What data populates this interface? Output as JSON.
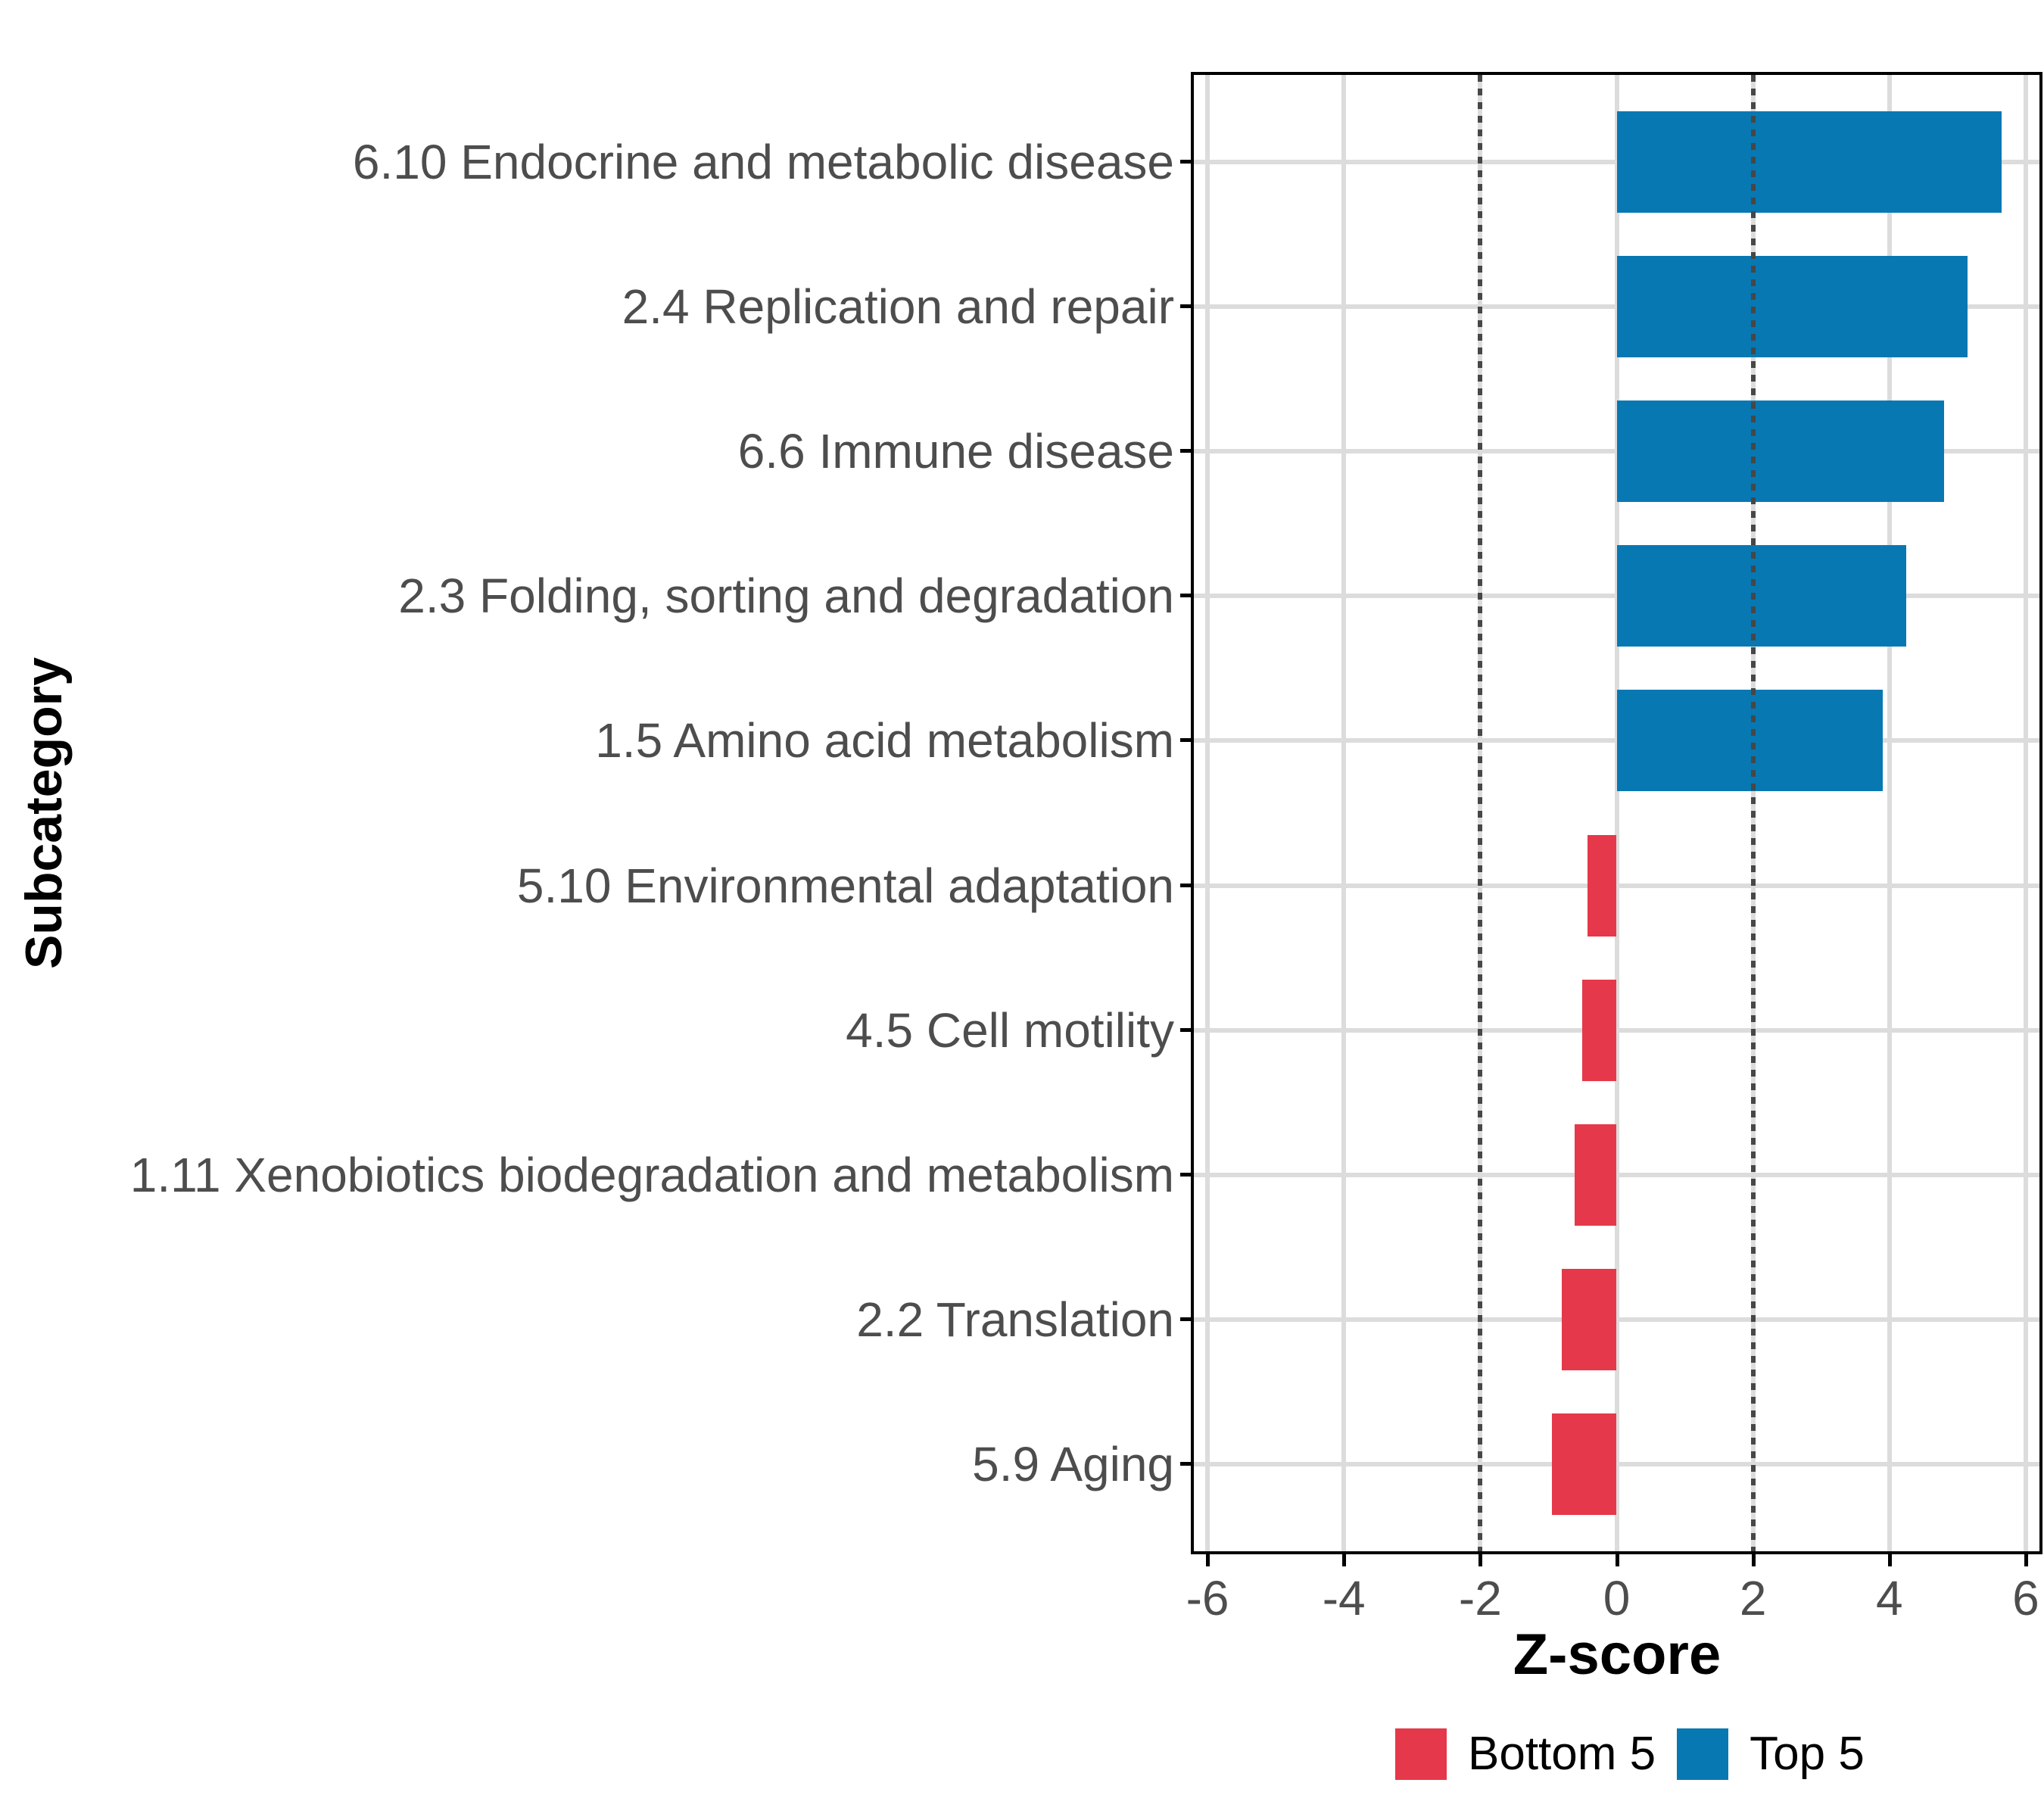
{
  "chart_data": {
    "type": "bar",
    "orientation": "horizontal",
    "title": "",
    "xlabel": "Z-score",
    "ylabel": "Subcategory",
    "categories": [
      "6.10 Endocrine and metabolic disease",
      "2.4 Replication and repair",
      "6.6 Immune disease",
      "2.3 Folding, sorting and degradation",
      "1.5 Amino acid metabolism",
      "5.10 Environmental adaptation",
      "4.5 Cell motility",
      "1.11 Xenobiotics biodegradation and metabolism",
      "2.2 Translation",
      "5.9 Aging"
    ],
    "series": [
      {
        "name": "Z-score",
        "values": [
          5.65,
          5.15,
          4.8,
          4.25,
          3.9,
          -0.43,
          -0.5,
          -0.62,
          -0.8,
          -0.95
        ]
      }
    ],
    "groups": [
      "Top 5",
      "Top 5",
      "Top 5",
      "Top 5",
      "Top 5",
      "Bottom 5",
      "Bottom 5",
      "Bottom 5",
      "Bottom 5",
      "Bottom 5"
    ],
    "group_colors": {
      "Top 5": "#0878b3",
      "Bottom 5": "#e5384a"
    },
    "xlim": [
      -6.2,
      6.2
    ],
    "x_tick_values": [
      -6,
      -4,
      -2,
      0,
      2,
      4,
      6
    ],
    "reference_lines": [
      -2,
      2
    ],
    "grid": true,
    "legend": {
      "position": "bottom",
      "entries": [
        {
          "label": "Bottom 5",
          "color": "#e5384a"
        },
        {
          "label": "Top 5",
          "color": "#0878b3"
        }
      ]
    }
  },
  "theme": {
    "background": "#ffffff",
    "panel_border_color": "#000000",
    "grid_color": "#dcdcdc",
    "ref_line_color": "#474747",
    "axis_text_color": "#4d4d4d",
    "axis_title_color": "#000000",
    "tick_color": "#000000"
  }
}
